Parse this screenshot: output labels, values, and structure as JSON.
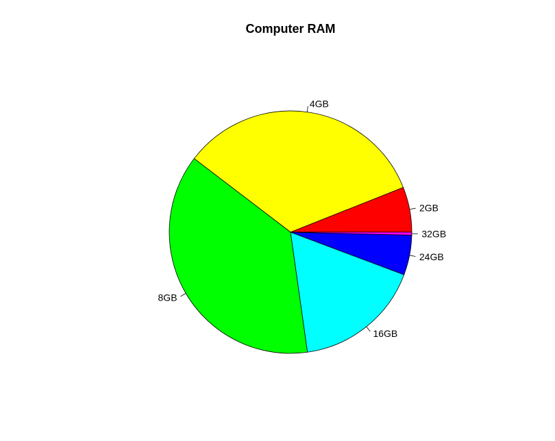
{
  "chart_data": {
    "type": "pie",
    "title": "Computer RAM",
    "categories": [
      "2GB",
      "4GB",
      "8GB",
      "16GB",
      "24GB",
      "32GB"
    ],
    "values": [
      6.0,
      33.5,
      37.5,
      17.0,
      5.3,
      0.4
    ],
    "colors": [
      "#ff0000",
      "#ffff00",
      "#00ff00",
      "#00ffff",
      "#0000ff",
      "#ff00ff"
    ],
    "start_angle_deg": 0,
    "direction": "counterclockwise",
    "legend": "none"
  }
}
